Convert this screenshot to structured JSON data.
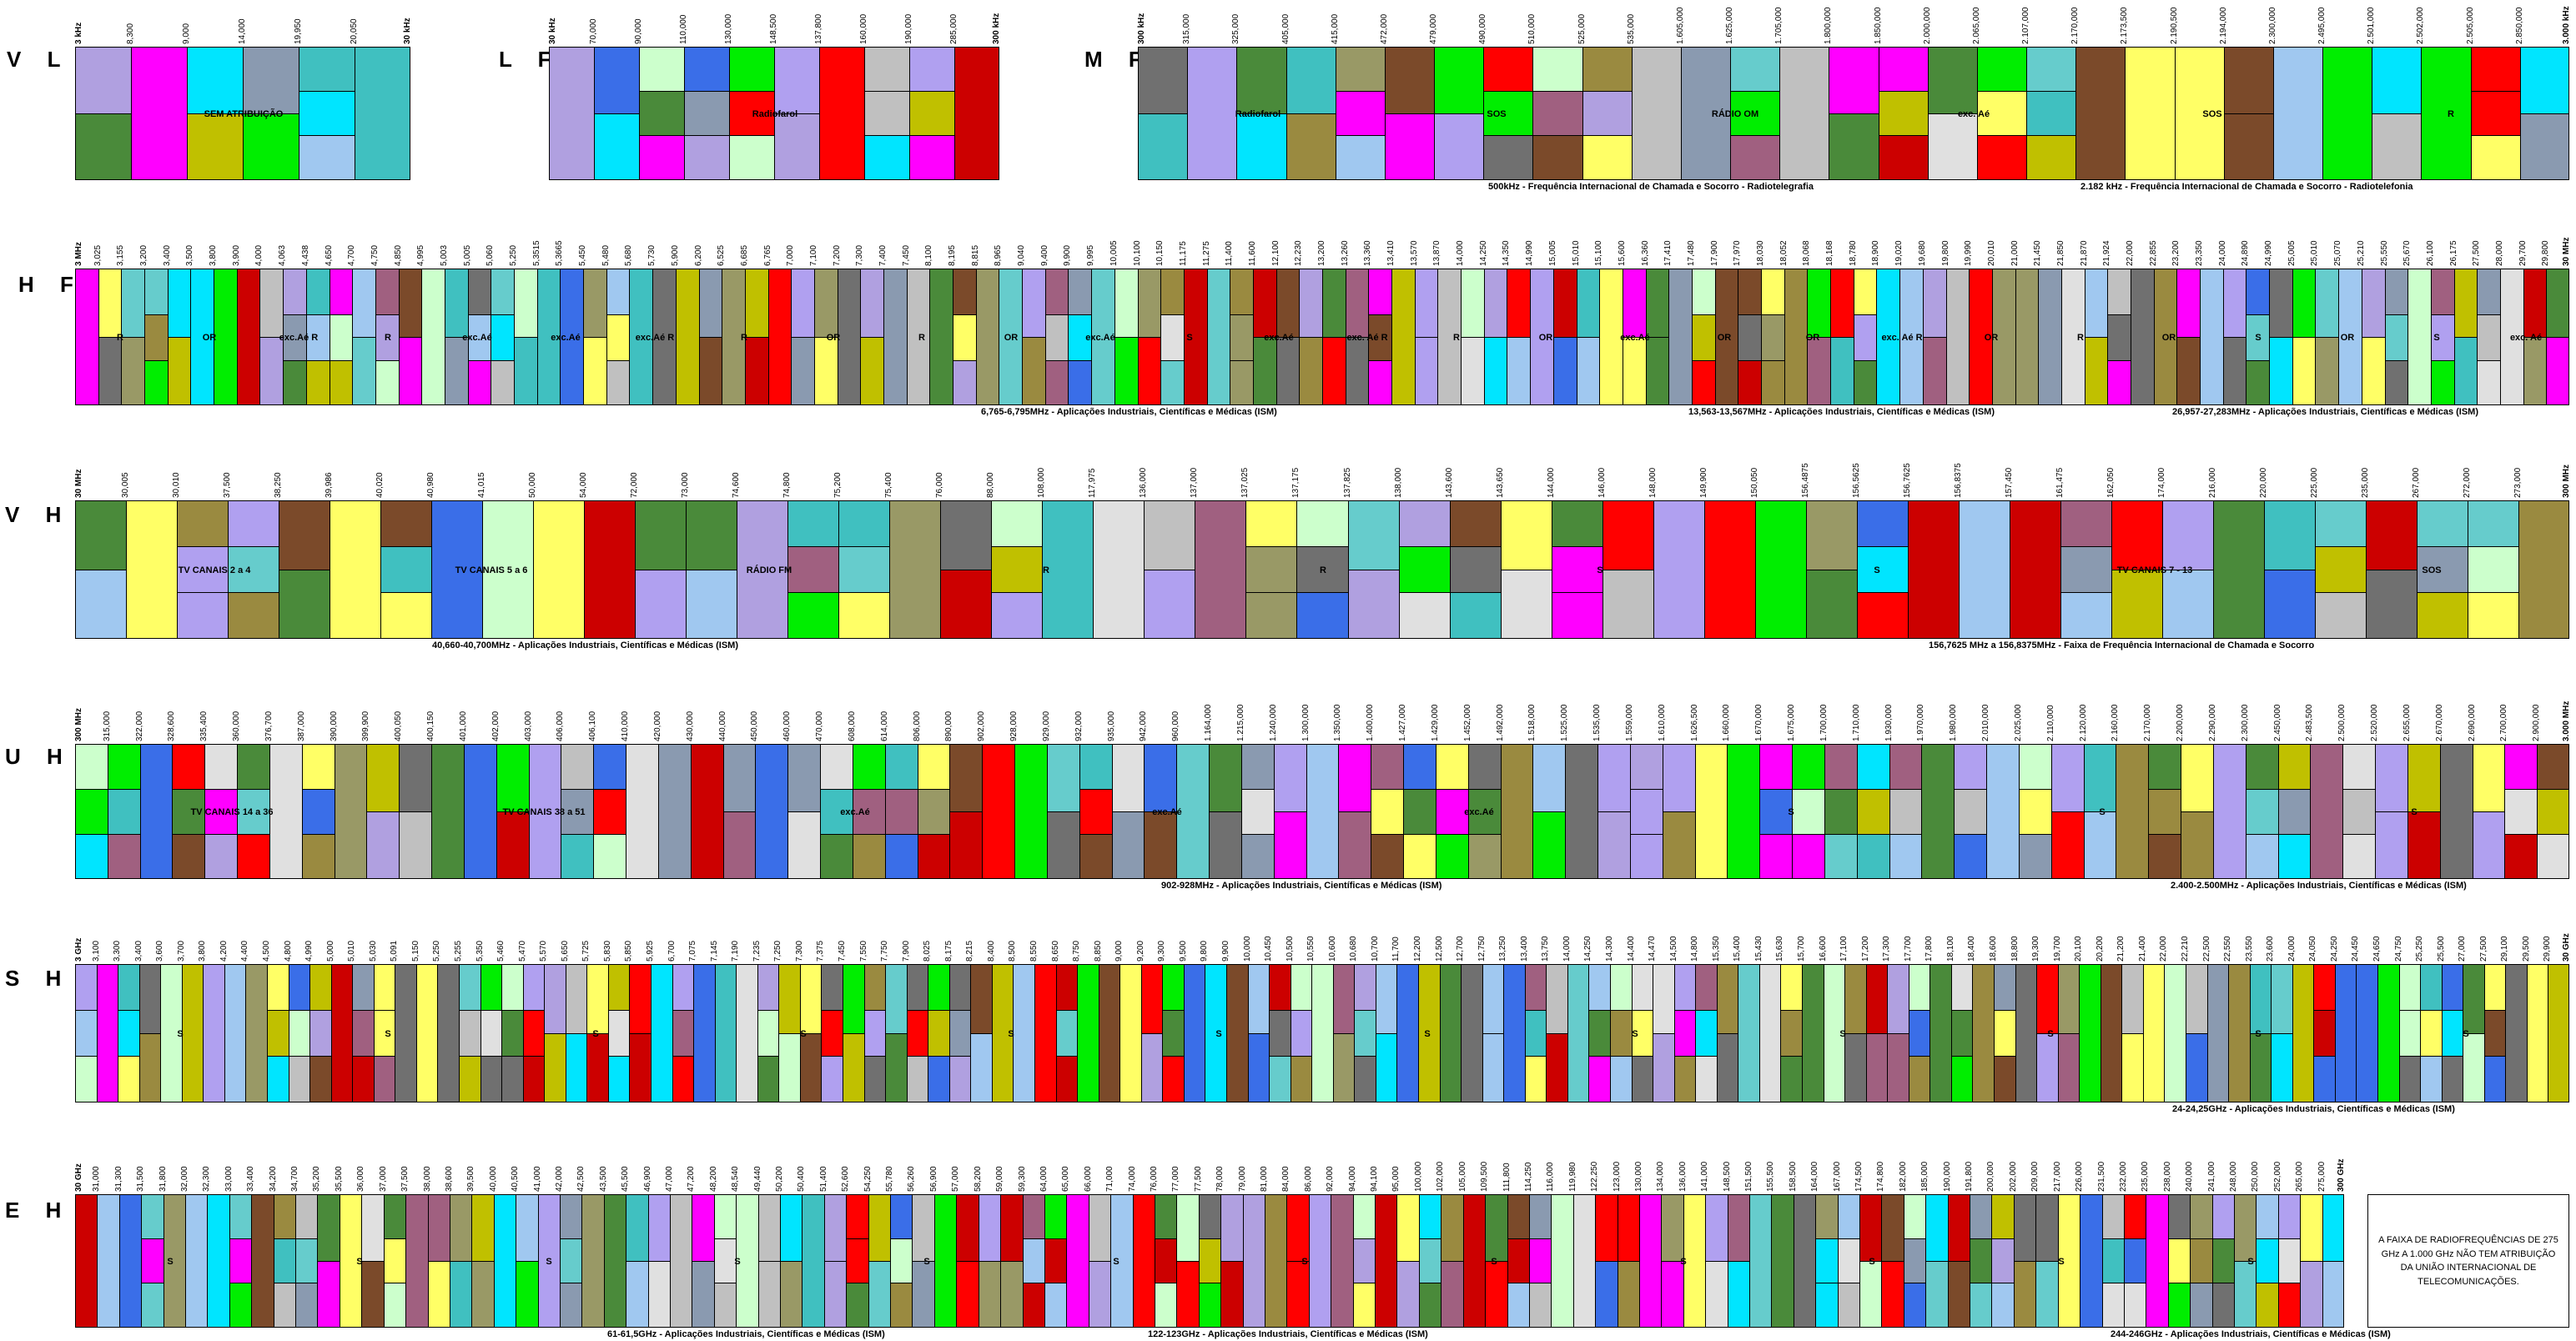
{
  "colors": {
    "fixo": "#ffff66",
    "movel": "#00e5ff",
    "radiodifusao": "#4a8a3a",
    "radionavegacao": "#ff0000",
    "radiolocalizacao": "#3a6ee8",
    "satelite": "#b0a0f0",
    "amador": "#00ee00",
    "outros": [
      "#999966",
      "#c0c0c0",
      "#8a9ab0",
      "#ff00ff",
      "#a0c8f0",
      "#b0a0e0",
      "#cc0000",
      "#9a8a40",
      "#40c0c0",
      "#66cccc",
      "#707070",
      "#e0e0e0",
      "#7b4a2a",
      "#c0c000",
      "#a06080",
      "#ccffcc"
    ]
  },
  "rows": [
    {
      "name": "VLF",
      "title": "V L F",
      "start": "3 kHz",
      "end": "30 kHz",
      "ticks": [
        "8,300",
        "9,000",
        "14,000",
        "19,950",
        "20,050"
      ],
      "labels": [
        "SEM ATRIBUIÇÃO"
      ],
      "notes": []
    },
    {
      "name": "LF",
      "title": "L F",
      "start": "30 kHz",
      "end": "300 kHz",
      "ticks": [
        "70,000",
        "90,000",
        "110,000",
        "130,000",
        "148,500",
        "137,800",
        "160,000",
        "190,000",
        "285,000"
      ],
      "labels": [
        "Radiofarol"
      ],
      "notes": []
    },
    {
      "name": "MF",
      "title": "M F",
      "start": "300 kHz",
      "end": "3.000 kHz",
      "ticks": [
        "315,000",
        "325,000",
        "405,000",
        "415,000",
        "472,000",
        "479,000",
        "490,000",
        "510,000",
        "525,000",
        "535,000",
        "1.605,000",
        "1.625,000",
        "1.705,000",
        "1.800,000",
        "1.850,000",
        "2.000,000",
        "2.065,000",
        "2.107,000",
        "2.170,000",
        "2.173,500",
        "2.190,500",
        "2.194,000",
        "2.300,000",
        "2.495,000",
        "2.501,000",
        "2.502,000",
        "2.505,000",
        "2.850,000"
      ],
      "labels": [
        "Radiofarol",
        "SOS",
        "RÁDIO  OM",
        "exc. Aé",
        "SOS",
        "R"
      ],
      "notes": [
        "500kHz - Frequência Internacional de Chamada e Socorro - Radiotelegrafia",
        "2.182 kHz - Frequência Internacional de Chamada e Socorro - Radiotelefonia"
      ]
    },
    {
      "name": "HF",
      "title": "H F",
      "start": "3 MHz",
      "end": "30 MHz",
      "ticks": [
        "3,025",
        "3,155",
        "3,200",
        "3,400",
        "3,500",
        "3,800",
        "3,900",
        "4,000",
        "4,063",
        "4,438",
        "4,650",
        "4,700",
        "4,750",
        "4,850",
        "4,995",
        "5,003",
        "5,005",
        "5,060",
        "5,250",
        "5,3515",
        "5,3665",
        "5,450",
        "5,480",
        "5,680",
        "5,730",
        "5,900",
        "6,200",
        "6,525",
        "6,685",
        "6,765",
        "7,000",
        "7,100",
        "7,200",
        "7,300",
        "7,400",
        "7,450",
        "8,100",
        "8,195",
        "8,815",
        "8,965",
        "9,040",
        "9,400",
        "9,900",
        "9,995",
        "10,005",
        "10,100",
        "10,150",
        "11,175",
        "11,275",
        "11,400",
        "11,600",
        "12,100",
        "12,230",
        "13,200",
        "13,260",
        "13,360",
        "13,410",
        "13,570",
        "13,870",
        "14,000",
        "14,250",
        "14,350",
        "14,990",
        "15,005",
        "15,010",
        "15,100",
        "15,600",
        "16,360",
        "17,410",
        "17,480",
        "17,900",
        "17,970",
        "18,030",
        "18,052",
        "18,068",
        "18,168",
        "18,780",
        "18,900",
        "19,020",
        "19,680",
        "19,800",
        "19,990",
        "20,010",
        "21,000",
        "21,450",
        "21,850",
        "21,870",
        "21,924",
        "22,000",
        "22,855",
        "23,200",
        "23,350",
        "24,000",
        "24,890",
        "24,990",
        "25,005",
        "25,010",
        "25,070",
        "25,210",
        "25,550",
        "25,670",
        "26,100",
        "26,175",
        "27,500",
        "28,000",
        "29,700",
        "29,800"
      ],
      "labels": [
        "R",
        "OR",
        "exc.Aé R",
        "R",
        "exc.Aé",
        "exc.Aé",
        "exc.Aé R",
        "R",
        "OR",
        "R",
        "OR",
        "exc.Aé",
        "S",
        "exc.Aé",
        "exc. Aé R",
        "R",
        "OR",
        "exc.Aé",
        "OR",
        "OR",
        "exc. Aé R",
        "OR",
        "R",
        "OR",
        "S",
        "OR",
        "S",
        "exc. Aé"
      ],
      "notes": [
        "6,765-6,795MHz - Aplicações Industriais, Científicas e Médicas (ISM)",
        "13,563-13,567MHz - Aplicações Industriais, Científicas e Médicas (ISM)",
        "26,957-27,283MHz - Aplicações Industriais, Científicas e Médicas (ISM)"
      ]
    },
    {
      "name": "VHF",
      "title": "V H F",
      "start": "30 MHz",
      "end": "300 MHz",
      "ticks": [
        "30,005",
        "30,010",
        "37,500",
        "38,250",
        "39,986",
        "40,020",
        "40,980",
        "41,015",
        "50,000",
        "54,000",
        "72,000",
        "73,000",
        "74,600",
        "74,800",
        "75,200",
        "75,400",
        "76,000",
        "88,000",
        "108,000",
        "117,975",
        "136,000",
        "137,000",
        "137,025",
        "137,175",
        "137,825",
        "138,000",
        "143,600",
        "143,650",
        "144,000",
        "146,000",
        "148,000",
        "149,900",
        "150,050",
        "156,4875",
        "156,5625",
        "156,7625",
        "156,8375",
        "157,450",
        "161,475",
        "162,050",
        "174,000",
        "216,000",
        "220,000",
        "225,000",
        "235,000",
        "267,000",
        "272,000",
        "273,000"
      ],
      "labels": [
        "TV    CANAIS  2 a 4",
        "TV    CANAIS    5 a 6",
        "RÁDIO    FM",
        "R",
        "R",
        "S",
        "S",
        "TV    CANAIS      7 - 13",
        "SOS"
      ],
      "notes": [
        "40,660-40,700MHz - Aplicações Industriais, Científicas e Médicas (ISM)",
        "156,7625 MHz a 156,8375MHz - Faixa de Frequência Internacional de Chamada e Socorro"
      ]
    },
    {
      "name": "UHF",
      "title": "U H F",
      "start": "300 MHz",
      "end": "3.000 MHz",
      "ticks": [
        "315,000",
        "322,000",
        "328,600",
        "335,400",
        "360,000",
        "376,700",
        "387,000",
        "390,000",
        "399,900",
        "400,050",
        "400,150",
        "401,000",
        "402,000",
        "403,000",
        "406,000",
        "406,100",
        "410,000",
        "420,000",
        "430,000",
        "440,000",
        "450,000",
        "460,000",
        "470,000",
        "608,000",
        "614,000",
        "806,000",
        "890,000",
        "902,000",
        "928,000",
        "929,000",
        "932,000",
        "935,000",
        "942,000",
        "960,000",
        "1.164,000",
        "1.215,000",
        "1.240,000",
        "1.300,000",
        "1.350,000",
        "1.400,000",
        "1.427,000",
        "1.429,000",
        "1.452,000",
        "1.492,000",
        "1.518,000",
        "1.525,000",
        "1.535,000",
        "1.559,000",
        "1.610,000",
        "1.626,500",
        "1.660,000",
        "1.670,000",
        "1.675,000",
        "1.700,000",
        "1.710,000",
        "1.930,000",
        "1.970,000",
        "1.980,000",
        "2.010,000",
        "2.025,000",
        "2.110,000",
        "2.120,000",
        "2.160,000",
        "2.170,000",
        "2.200,000",
        "2.290,000",
        "2.300,000",
        "2.450,000",
        "2.483,500",
        "2.500,000",
        "2.520,000",
        "2.655,000",
        "2.670,000",
        "2.690,000",
        "2.700,000",
        "2.900,000"
      ],
      "labels": [
        "TV  CANAIS   14 a 36",
        "TV  CANAIS   38 a 51",
        "exc.Aé",
        "exc.Aé",
        "exc.Aé",
        "S",
        "S",
        "S"
      ],
      "notes": [
        "902-928MHz - Aplicações Industriais, Científicas e Médicas (ISM)",
        "2.400-2.500MHz - Aplicações Industriais, Científicas e Médicas (ISM)"
      ]
    },
    {
      "name": "SHF",
      "title": "S H F",
      "start": "3 GHz",
      "end": "30 GHz",
      "ticks": [
        "3,100",
        "3,300",
        "3,400",
        "3,600",
        "3,700",
        "3,800",
        "4,200",
        "4,400",
        "4,500",
        "4,800",
        "4,990",
        "5,000",
        "5,010",
        "5,030",
        "5,091",
        "5,150",
        "5,250",
        "5,255",
        "5,350",
        "5,460",
        "5,470",
        "5,570",
        "5,650",
        "5,725",
        "5,830",
        "5,850",
        "5,925",
        "6,700",
        "7,075",
        "7,145",
        "7,190",
        "7,235",
        "7,250",
        "7,300",
        "7,375",
        "7,450",
        "7,550",
        "7,750",
        "7,900",
        "8,025",
        "8,175",
        "8,215",
        "8,400",
        "8,500",
        "8,550",
        "8,650",
        "8,750",
        "8,850",
        "9,000",
        "9,200",
        "9,300",
        "9,500",
        "9,800",
        "9,900",
        "10,000",
        "10,450",
        "10,500",
        "10,550",
        "10,600",
        "10,680",
        "10,700",
        "11,700",
        "12,200",
        "12,500",
        "12,700",
        "12,750",
        "13,250",
        "13,400",
        "13,750",
        "14,000",
        "14,250",
        "14,300",
        "14,400",
        "14,470",
        "14,500",
        "14,800",
        "15,350",
        "15,400",
        "15,430",
        "15,630",
        "15,700",
        "16,600",
        "17,100",
        "17,200",
        "17,300",
        "17,700",
        "17,800",
        "18,100",
        "18,400",
        "18,600",
        "18,800",
        "19,300",
        "19,700",
        "20,100",
        "20,200",
        "21,200",
        "21,400",
        "22,000",
        "22,210",
        "22,500",
        "22,550",
        "23,550",
        "23,600",
        "24,000",
        "24,050",
        "24,250",
        "24,450",
        "24,650",
        "24,750",
        "25,250",
        "25,500",
        "27,000",
        "27,500",
        "29,100",
        "29,500",
        "29,900"
      ],
      "labels": [
        "S",
        "S",
        "S",
        "S",
        "S",
        "S",
        "S",
        "S",
        "S",
        "S",
        "S",
        "S"
      ],
      "notes": [
        "24-24,25GHz - Aplicações Industriais, Científicas e Médicas (ISM)"
      ]
    },
    {
      "name": "EHF",
      "title": "E H F",
      "start": "30 GHz",
      "end": "300 GHz",
      "ticks": [
        "31,000",
        "31,300",
        "31,500",
        "31,800",
        "32,000",
        "32,300",
        "33,000",
        "33,400",
        "34,200",
        "34,700",
        "35,200",
        "35,500",
        "36,000",
        "37,000",
        "37,500",
        "38,000",
        "38,600",
        "39,500",
        "40,000",
        "40,500",
        "41,000",
        "42,000",
        "42,500",
        "43,500",
        "45,500",
        "46,900",
        "47,000",
        "47,200",
        "48,200",
        "48,540",
        "49,440",
        "50,200",
        "50,400",
        "51,400",
        "52,600",
        "54,250",
        "55,780",
        "56,260",
        "56,900",
        "57,000",
        "58,200",
        "59,000",
        "59,300",
        "64,000",
        "65,000",
        "66,000",
        "71,000",
        "74,000",
        "76,000",
        "77,000",
        "77,500",
        "78,000",
        "79,000",
        "81,000",
        "84,000",
        "86,000",
        "92,000",
        "94,000",
        "94,100",
        "95,000",
        "100,000",
        "102,000",
        "105,000",
        "109,500",
        "111,800",
        "114,250",
        "116,000",
        "119,980",
        "122,250",
        "123,000",
        "130,000",
        "134,000",
        "136,000",
        "141,000",
        "148,500",
        "151,500",
        "155,500",
        "158,500",
        "164,000",
        "167,000",
        "174,500",
        "174,800",
        "182,000",
        "185,000",
        "190,000",
        "191,800",
        "200,000",
        "202,000",
        "209,000",
        "217,000",
        "226,000",
        "231,500",
        "232,000",
        "235,000",
        "238,000",
        "240,000",
        "241,000",
        "248,000",
        "250,000",
        "252,000",
        "265,000",
        "275,000"
      ],
      "labels": [
        "S",
        "S",
        "S",
        "S",
        "S",
        "S",
        "S",
        "S",
        "S",
        "S",
        "S",
        "S"
      ],
      "notes": [
        "61-61,5GHz - Aplicações Industriais, Científicas e Médicas (ISM)",
        "122-123GHz - Aplicações Industriais, Científicas e Médicas (ISM)",
        "244-246GHz - Aplicações Industriais, Científicas e Médicas (ISM)"
      ],
      "footnote": "A FAIXA DE RADIOFREQUÊNCIAS DE 275 GHz  A  1.000 GHz NÃO TEM ATRIBUIÇÃO DA UNIÃO INTERNACIONAL DE TELECOMUNICAÇÕES."
    }
  ]
}
